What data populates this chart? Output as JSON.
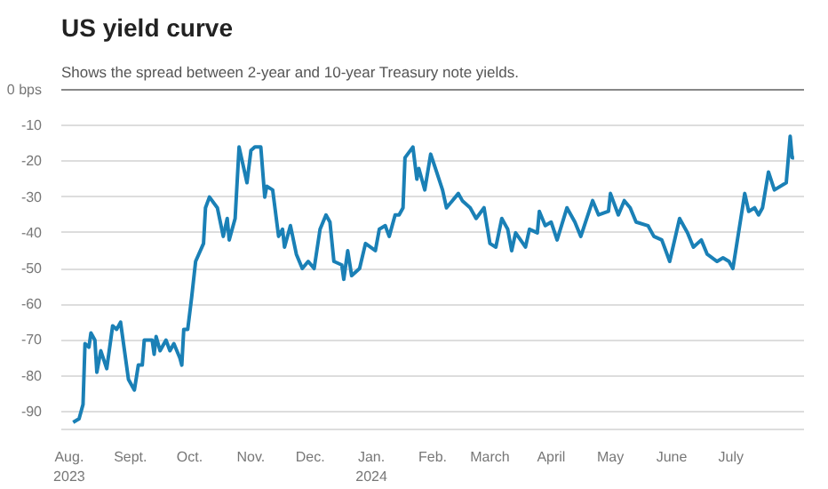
{
  "chart_data": {
    "type": "line",
    "title": "US yield curve",
    "subtitle": "Shows the spread between 2-year and 10-year Treasury note yields.",
    "x": [
      "2023-08-03",
      "2023-08-06",
      "2023-08-08",
      "2023-08-09",
      "2023-08-11",
      "2023-08-12",
      "2023-08-14",
      "2023-08-15",
      "2023-08-17",
      "2023-08-20",
      "2023-08-23",
      "2023-08-25",
      "2023-08-27",
      "2023-08-31",
      "2023-09-03",
      "2023-09-05",
      "2023-09-07",
      "2023-09-08",
      "2023-09-12",
      "2023-09-13",
      "2023-09-14",
      "2023-09-16",
      "2023-09-19",
      "2023-09-21",
      "2023-09-23",
      "2023-09-26",
      "2023-09-27",
      "2023-09-28",
      "2023-09-30",
      "2023-10-02",
      "2023-10-04",
      "2023-10-08",
      "2023-10-09",
      "2023-10-11",
      "2023-10-15",
      "2023-10-18",
      "2023-10-20",
      "2023-10-21",
      "2023-10-24",
      "2023-10-26",
      "2023-10-30",
      "2023-11-01",
      "2023-11-03",
      "2023-11-06",
      "2023-11-08",
      "2023-11-09",
      "2023-11-12",
      "2023-11-15",
      "2023-11-17",
      "2023-11-18",
      "2023-11-21",
      "2023-11-24",
      "2023-11-27",
      "2023-11-30",
      "2023-12-03",
      "2023-12-06",
      "2023-12-09",
      "2023-12-11",
      "2023-12-13",
      "2023-12-17",
      "2023-12-18",
      "2023-12-20",
      "2023-12-22",
      "2023-12-26",
      "2023-12-29",
      "2024-01-03",
      "2024-01-05",
      "2024-01-08",
      "2024-01-10",
      "2024-01-13",
      "2024-01-15",
      "2024-01-17",
      "2024-01-18",
      "2024-01-22",
      "2024-01-24",
      "2024-01-25",
      "2024-01-28",
      "2024-01-31",
      "2024-02-03",
      "2024-02-06",
      "2024-02-08",
      "2024-02-11",
      "2024-02-14",
      "2024-02-16",
      "2024-02-20",
      "2024-02-23",
      "2024-02-27",
      "2024-03-01",
      "2024-03-04",
      "2024-03-07",
      "2024-03-10",
      "2024-03-12",
      "2024-03-14",
      "2024-03-19",
      "2024-03-21",
      "2024-03-25",
      "2024-03-26",
      "2024-03-29",
      "2024-04-01",
      "2024-04-04",
      "2024-04-09",
      "2024-04-13",
      "2024-04-16",
      "2024-04-22",
      "2024-04-25",
      "2024-04-30",
      "2024-05-01",
      "2024-05-05",
      "2024-05-08",
      "2024-05-11",
      "2024-05-14",
      "2024-05-20",
      "2024-05-23",
      "2024-05-27",
      "2024-05-31",
      "2024-06-05",
      "2024-06-09",
      "2024-06-12",
      "2024-06-16",
      "2024-06-19",
      "2024-06-24",
      "2024-06-27",
      "2024-06-30",
      "2024-07-02",
      "2024-07-04",
      "2024-07-06",
      "2024-07-08",
      "2024-07-10",
      "2024-07-13",
      "2024-07-15",
      "2024-07-17",
      "2024-07-20",
      "2024-07-23",
      "2024-07-29",
      "2024-07-31",
      "2024-08-01",
      "2024-08-02"
    ],
    "series": [
      {
        "color": "#1a80b6",
        "values": [
          -93,
          -92,
          -88,
          -71,
          -72,
          -68,
          -70,
          -79,
          -73,
          -78,
          -66,
          -67,
          -65,
          -81,
          -84,
          -77,
          -77,
          -70,
          -70,
          -74,
          -69,
          -73,
          -70,
          -73,
          -71,
          -75,
          -77,
          -67,
          -67,
          -58,
          -48,
          -43,
          -33,
          -30,
          -33,
          -41,
          -36,
          -42,
          -36,
          -16,
          -26,
          -17,
          -16,
          -16,
          -30,
          -27,
          -28,
          -41,
          -39,
          -44,
          -38,
          -46,
          -50,
          -48,
          -50,
          -39,
          -35,
          -37,
          -48,
          -49,
          -53,
          -45,
          -52,
          -50,
          -43,
          -45,
          -39,
          -38,
          -41,
          -35,
          -35,
          -33,
          -19,
          -16,
          -25,
          -22,
          -28,
          -18,
          -23,
          -28,
          -33,
          -31,
          -29,
          -31,
          -33,
          -36,
          -33,
          -43,
          -44,
          -36,
          -39,
          -45,
          -40,
          -44,
          -39,
          -40,
          -34,
          -38,
          -37,
          -42,
          -33,
          -37,
          -41,
          -31,
          -35,
          -34,
          -29,
          -35,
          -31,
          -33,
          -37,
          -38,
          -41,
          -42,
          -48,
          -36,
          -40,
          -44,
          -42,
          -46,
          -48,
          -47,
          -48,
          -50,
          -43,
          -36,
          -29,
          -34,
          -33,
          -35,
          -33,
          -23,
          -28,
          -26,
          -13,
          -19,
          -19
        ]
      }
    ],
    "xlim": [
      "2023-07-28",
      "2024-08-07"
    ],
    "xticks": [
      {
        "value": "2023-08-01",
        "label": "Aug.\n2023"
      },
      {
        "value": "2023-09-01",
        "label": "Sept."
      },
      {
        "value": "2023-10-01",
        "label": "Oct."
      },
      {
        "value": "2023-11-01",
        "label": "Nov."
      },
      {
        "value": "2023-12-01",
        "label": "Dec."
      },
      {
        "value": "2024-01-01",
        "label": "Jan.\n2024"
      },
      {
        "value": "2024-02-01",
        "label": "Feb."
      },
      {
        "value": "2024-03-01",
        "label": "March"
      },
      {
        "value": "2024-04-01",
        "label": "April"
      },
      {
        "value": "2024-05-01",
        "label": "May"
      },
      {
        "value": "2024-06-01",
        "label": "June"
      },
      {
        "value": "2024-07-01",
        "label": "July"
      }
    ],
    "ylim": [
      -95,
      0
    ],
    "yticks": [
      {
        "value": 0,
        "label": "0 bps"
      },
      -10,
      -20,
      -30,
      -40,
      -50,
      -60,
      -70,
      -80,
      -90
    ],
    "grid": "y"
  }
}
